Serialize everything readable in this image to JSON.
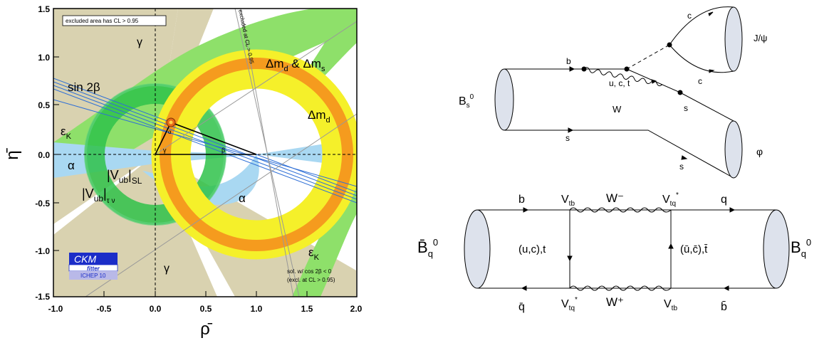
{
  "ckm_plot": {
    "xlabel": "ρ̄",
    "ylabel": "η̄",
    "xlim": [
      -1.0,
      2.0
    ],
    "ylim": [
      -1.5,
      1.5
    ],
    "x_ticks": [
      "-1.0",
      "-0.5",
      "0.0",
      "0.5",
      "1.0",
      "1.5",
      "2.0"
    ],
    "y_ticks": [
      "1.5",
      "1.0",
      "0.5",
      "0.0",
      "-0.5",
      "-1.0",
      "-1.5"
    ],
    "excluded_note": "excluded area has CL > 0.95",
    "excluded_at_cl": "excluded at CL > 0.95",
    "labels": {
      "gamma_top": "γ",
      "gamma_bottom": "γ",
      "dmd_dms_prefix": "Δm",
      "dmd_dms_sub1": "d",
      "dmd_dms_mid": " & Δm",
      "dmd_dms_sub2": "s",
      "sin2beta": "sin 2β",
      "dmd_prefix": "Δm",
      "dmd_sub": "d",
      "epsk_left_main": "ε",
      "epsk_left_sub": "K",
      "epsk_right_main": "ε",
      "epsk_right_sub": "K",
      "alpha_left": "α",
      "alpha_right": "α",
      "alpha_apex": "α",
      "beta_corner": "β",
      "gamma_corner": "γ",
      "vub_sl_main": "|V",
      "vub_sl_sub": "ub",
      "vub_sl_close": "|",
      "vub_sl_sub2": "SL",
      "vub_tn_main": "|V",
      "vub_tn_sub": "ub",
      "vub_tn_close": "|",
      "vub_tn_sub2": "τ ν",
      "sol_note_1": "sol. w/ cos 2β < 0",
      "sol_note_2": "(excl. at CL > 0.95)"
    },
    "logo": {
      "line1": "CKM",
      "line2": "fitter",
      "line3": "ICHEP 10"
    },
    "colors": {
      "gamma_region": "#d9d2b0",
      "eps_k": "#8ee06a",
      "dmd": "#f5f02a",
      "dms": "#f59b1e",
      "vub_green": "#2fc24a",
      "alpha_blue": "#a9d8f2",
      "sin2beta_line": "#2f6fd6",
      "apex": "#e86a1a"
    },
    "apex_point": {
      "rho": 0.15,
      "eta": 0.34
    }
  },
  "diagram_top": {
    "bs0_main": "B",
    "bs0_sub": "s",
    "bs0_sup": "0",
    "b_label": "b",
    "s_label_lower": "s",
    "uct_label": "u, c, t",
    "w_label": "W",
    "c_upper": "c",
    "c_lower": "c",
    "jpsi_label": "J/ψ",
    "s_right": "s",
    "s_bottom": "s",
    "phi_label": "φ"
  },
  "diagram_bottom": {
    "bbar_main": "B̄",
    "bbar_sub": "q",
    "bbar_sup": "0",
    "b_q_main": "B",
    "b_q_sub": "q",
    "b_q_sup": "0",
    "b_label": "b",
    "qbar_label": "q̄",
    "q_label": "q",
    "bbar_quark": "b̄",
    "vtb_top_main": "V",
    "vtb_top_sub": "tb",
    "vtq_top_main": "V",
    "vtq_top_sub": "tq",
    "vtq_top_sup": "*",
    "vtq_bot_main": "V",
    "vtq_bot_sub": "tq",
    "vtq_bot_sup": "*",
    "vtb_bot_main": "V",
    "vtb_bot_sub": "tb",
    "w_minus": "W⁻",
    "w_plus": "W⁺",
    "uct_left": "(u,c),t",
    "uct_right": "(ū,c̄),t̄"
  }
}
